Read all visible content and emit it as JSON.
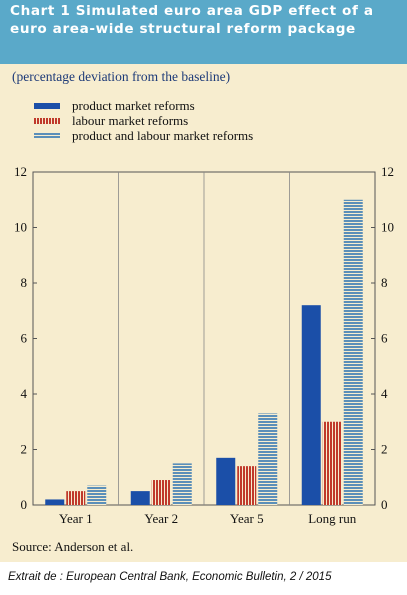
{
  "title": "Chart 1 Simulated euro area GDP effect of a euro area-wide structural reform package",
  "subtitle": "(percentage deviation from the baseline)",
  "source": "Source: Anderson et al.",
  "credit": "Extrait de : European Central Bank, Economic Bulletin, 2 / 2015",
  "chart_data": {
    "type": "bar",
    "title": "Chart 1 Simulated euro area GDP effect of a euro area-wide structural reform package",
    "subtitle": "(percentage deviation from the baseline)",
    "categories": [
      "Year 1",
      "Year 2",
      "Year 5",
      "Long run"
    ],
    "series": [
      {
        "name": "product market reforms",
        "values": [
          0.2,
          0.5,
          1.7,
          7.2
        ],
        "color": "#1b4fa8",
        "pattern": "solid"
      },
      {
        "name": "labour market reforms",
        "values": [
          0.5,
          0.9,
          1.4,
          3.0
        ],
        "color": "#c0392b",
        "pattern": "vertical-stripes"
      },
      {
        "name": "product and labour market reforms",
        "values": [
          0.7,
          1.5,
          3.3,
          11.0
        ],
        "color": "#5b8fb9",
        "pattern": "horizontal-stripes"
      }
    ],
    "ylim": [
      0,
      12
    ],
    "yticks": [
      0,
      2,
      4,
      6,
      8,
      10,
      12
    ],
    "y_axis_both_sides": true,
    "grid": "vertical separators between categories",
    "legend_position": "top-left"
  },
  "colors": {
    "panel_background": "#f7edcf",
    "title_bar": "#5aa9c9",
    "subtitle_text": "#1d3a78"
  }
}
